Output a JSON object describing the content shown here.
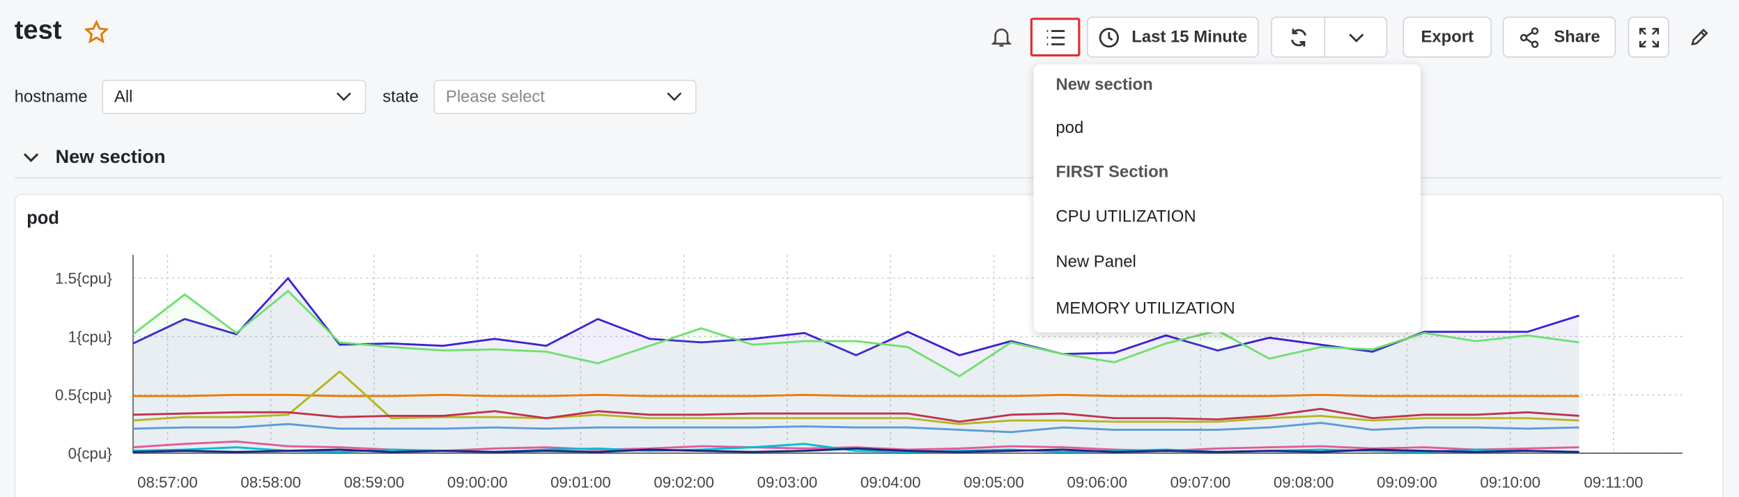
{
  "header": {
    "title": "test",
    "buttons": [
      "Last 15 Minute",
      "Export",
      "Share"
    ]
  },
  "filters": [
    {
      "label": "hostname",
      "value": "All"
    },
    {
      "label": "state",
      "placeholder": "Please select"
    }
  ],
  "section": {
    "title": "New section"
  },
  "menu": {
    "items": [
      {
        "text": "New section",
        "kind": "heading"
      },
      {
        "text": "pod",
        "kind": "item"
      },
      {
        "text": "FIRST Section",
        "kind": "heading"
      },
      {
        "text": "CPU UTILIZATION",
        "kind": "item"
      },
      {
        "text": "New Panel",
        "kind": "item"
      },
      {
        "text": "MEMORY UTILIZATION",
        "kind": "item"
      }
    ]
  },
  "panel": {
    "title": "pod"
  },
  "chart_data": {
    "type": "line",
    "grid": true,
    "x": [
      "08:56:40",
      "08:57:10",
      "08:57:40",
      "08:58:10",
      "08:58:40",
      "08:59:10",
      "08:59:40",
      "09:00:10",
      "09:00:40",
      "09:01:10",
      "09:01:40",
      "09:02:10",
      "09:02:40",
      "09:03:10",
      "09:03:40",
      "09:04:10",
      "09:04:40",
      "09:05:10",
      "09:05:40",
      "09:06:10",
      "09:06:40",
      "09:07:10",
      "09:07:40",
      "09:08:10",
      "09:08:40",
      "09:09:10",
      "09:09:40",
      "09:10:10",
      "09:10:40"
    ],
    "xlim": [
      "08:56:40",
      "09:11:40"
    ],
    "xticks": [
      "08:57:00",
      "08:58:00",
      "08:59:00",
      "09:00:00",
      "09:01:00",
      "09:02:00",
      "09:03:00",
      "09:04:00",
      "09:05:00",
      "09:06:00",
      "09:07:00",
      "09:08:00",
      "09:09:00",
      "09:10:00",
      "09:11:00"
    ],
    "ylim": [
      0,
      1.7
    ],
    "yticks": [
      {
        "value": 0,
        "label": "0{cpu}"
      },
      {
        "value": 0.5,
        "label": "0.5{cpu}"
      },
      {
        "value": 1,
        "label": "1{cpu}"
      },
      {
        "value": 1.5,
        "label": "1.5{cpu}"
      }
    ],
    "series": [
      {
        "color": "#3a22d6",
        "area": true,
        "values": [
          0.94,
          1.15,
          1.02,
          1.5,
          0.93,
          0.94,
          0.92,
          0.98,
          0.92,
          1.15,
          0.98,
          0.95,
          0.98,
          1.03,
          0.84,
          1.04,
          0.84,
          0.96,
          0.85,
          0.86,
          1.01,
          0.88,
          0.99,
          0.93,
          0.87,
          1.04,
          1.04,
          1.04,
          1.18
        ]
      },
      {
        "color": "#6ee06e",
        "area": true,
        "values": [
          1.02,
          1.36,
          1.03,
          1.39,
          0.95,
          0.91,
          0.88,
          0.89,
          0.87,
          0.77,
          0.92,
          1.07,
          0.93,
          0.96,
          0.96,
          0.91,
          0.66,
          0.95,
          0.85,
          0.78,
          0.94,
          1.05,
          0.81,
          0.91,
          0.89,
          1.03,
          0.96,
          1.01,
          0.95
        ]
      },
      {
        "color": "#f07800",
        "values": [
          0.49,
          0.49,
          0.5,
          0.5,
          0.49,
          0.49,
          0.5,
          0.49,
          0.49,
          0.5,
          0.49,
          0.49,
          0.49,
          0.5,
          0.49,
          0.49,
          0.49,
          0.49,
          0.5,
          0.49,
          0.49,
          0.49,
          0.49,
          0.5,
          0.49,
          0.49,
          0.49,
          0.49,
          0.49
        ]
      },
      {
        "color": "#b5b41c",
        "values": [
          0.28,
          0.31,
          0.31,
          0.33,
          0.7,
          0.3,
          0.31,
          0.31,
          0.3,
          0.33,
          0.3,
          0.3,
          0.3,
          0.3,
          0.3,
          0.3,
          0.25,
          0.28,
          0.28,
          0.27,
          0.27,
          0.27,
          0.3,
          0.32,
          0.28,
          0.3,
          0.3,
          0.3,
          0.28
        ]
      },
      {
        "color": "#c2304c",
        "values": [
          0.33,
          0.34,
          0.35,
          0.35,
          0.31,
          0.32,
          0.32,
          0.36,
          0.3,
          0.36,
          0.33,
          0.33,
          0.34,
          0.34,
          0.34,
          0.34,
          0.27,
          0.33,
          0.34,
          0.3,
          0.3,
          0.29,
          0.32,
          0.38,
          0.3,
          0.33,
          0.33,
          0.35,
          0.32
        ]
      },
      {
        "color": "#5b9bd5",
        "values": [
          0.21,
          0.22,
          0.22,
          0.25,
          0.21,
          0.21,
          0.21,
          0.22,
          0.21,
          0.22,
          0.22,
          0.22,
          0.22,
          0.23,
          0.22,
          0.22,
          0.2,
          0.18,
          0.22,
          0.2,
          0.2,
          0.2,
          0.22,
          0.26,
          0.2,
          0.22,
          0.22,
          0.21,
          0.22
        ]
      },
      {
        "color": "#e05a9a",
        "values": [
          0.05,
          0.08,
          0.1,
          0.06,
          0.05,
          0.03,
          0.02,
          0.04,
          0.05,
          0.03,
          0.04,
          0.06,
          0.05,
          0.04,
          0.05,
          0.03,
          0.04,
          0.06,
          0.05,
          0.03,
          0.02,
          0.04,
          0.05,
          0.06,
          0.04,
          0.05,
          0.03,
          0.04,
          0.05
        ]
      },
      {
        "color": "#00bcd4",
        "values": [
          0.02,
          0.03,
          0.05,
          0.02,
          0.01,
          0.03,
          0.02,
          0.01,
          0.03,
          0.04,
          0.02,
          0.03,
          0.05,
          0.08,
          0.02,
          0.01,
          0.02,
          0.03,
          0.01,
          0.02,
          0.03,
          0.01,
          0.02,
          0.03,
          0.02,
          0.01,
          0.03,
          0.02,
          0.01
        ]
      },
      {
        "color": "#1a237e",
        "values": [
          0.01,
          0.02,
          0.01,
          0.02,
          0.03,
          0.01,
          0.02,
          0.01,
          0.02,
          0.01,
          0.03,
          0.02,
          0.01,
          0.02,
          0.04,
          0.02,
          0.01,
          0.02,
          0.03,
          0.01,
          0.02,
          0.01,
          0.02,
          0.01,
          0.03,
          0.02,
          0.01,
          0.02,
          0.01
        ]
      }
    ]
  }
}
